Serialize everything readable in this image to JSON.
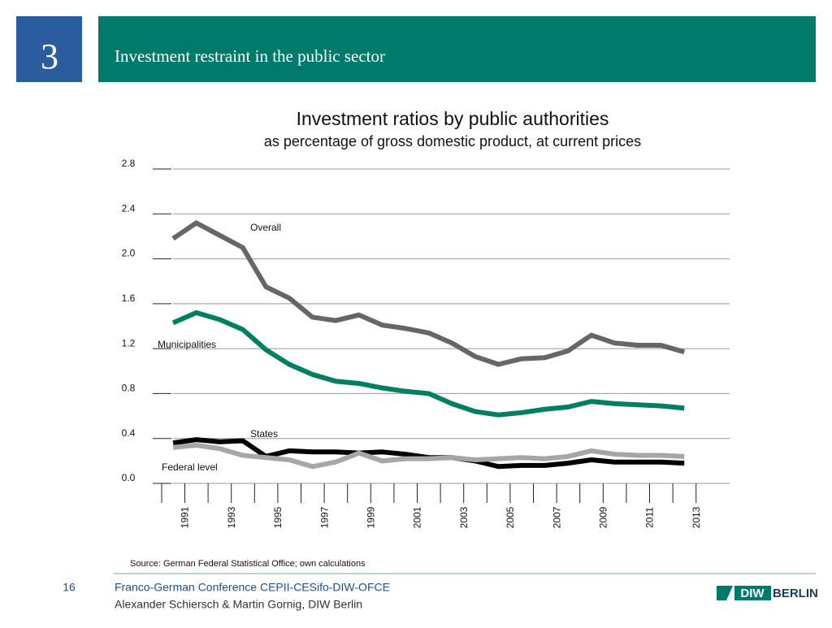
{
  "slide": {
    "number": "3",
    "heading": "Investment restraint in the public sector",
    "source": "Source:  German Federal Statistical Office; own calculations",
    "page": "16",
    "footer_line1": "Franco-German Conference CEPII-CESifo-DIW-OFCE",
    "footer_line2": "Alexander Schiersch & Martin Gornig, DIW Berlin",
    "logo_left": "DIW",
    "logo_right": "BERLIN"
  },
  "chart_data": {
    "type": "line",
    "title": "Investment ratios by public authorities",
    "subtitle": "as percentage of gross domestic product, at current prices",
    "categories": [
      "1991",
      null,
      "1993",
      null,
      "1995",
      null,
      "1997",
      null,
      "1999",
      null,
      "2001",
      null,
      "2003",
      null,
      "2005",
      null,
      "2007",
      null,
      "2009",
      null,
      "2011",
      null,
      "2013"
    ],
    "series": [
      {
        "name": "Overall",
        "color": "#666666",
        "values": [
          2.18,
          2.32,
          2.21,
          2.1,
          1.75,
          1.65,
          1.48,
          1.45,
          1.5,
          1.41,
          1.38,
          1.34,
          1.25,
          1.13,
          1.06,
          1.11,
          1.12,
          1.18,
          1.32,
          1.25,
          1.23,
          1.23,
          1.17
        ]
      },
      {
        "name": "Municipalities",
        "color": "#008060",
        "values": [
          1.43,
          1.52,
          1.46,
          1.37,
          1.19,
          1.06,
          0.97,
          0.91,
          0.89,
          0.85,
          0.82,
          0.8,
          0.71,
          0.64,
          0.61,
          0.63,
          0.66,
          0.68,
          0.73,
          0.71,
          0.7,
          0.69,
          0.67
        ]
      },
      {
        "name": "States",
        "color": "#000000",
        "values": [
          0.36,
          0.39,
          0.37,
          0.38,
          0.24,
          0.29,
          0.28,
          0.28,
          0.27,
          0.28,
          0.26,
          0.23,
          0.23,
          0.2,
          0.15,
          0.16,
          0.16,
          0.18,
          0.21,
          0.19,
          0.19,
          0.19,
          0.18
        ]
      },
      {
        "name": "Federal level",
        "color": "#a6a6a6",
        "values": [
          0.32,
          0.34,
          0.31,
          0.25,
          0.23,
          0.21,
          0.15,
          0.19,
          0.27,
          0.2,
          0.22,
          0.22,
          0.23,
          0.21,
          0.22,
          0.23,
          0.22,
          0.24,
          0.29,
          0.26,
          0.25,
          0.25,
          0.24
        ]
      }
    ],
    "ylim": [
      0,
      2.8
    ],
    "yticks": [
      {
        "value": 0,
        "label": "0.0"
      },
      0.4,
      0.8,
      1.2,
      1.6,
      {
        "value": 2,
        "label": "2.0"
      },
      2.4,
      2.8
    ],
    "grid": true
  }
}
